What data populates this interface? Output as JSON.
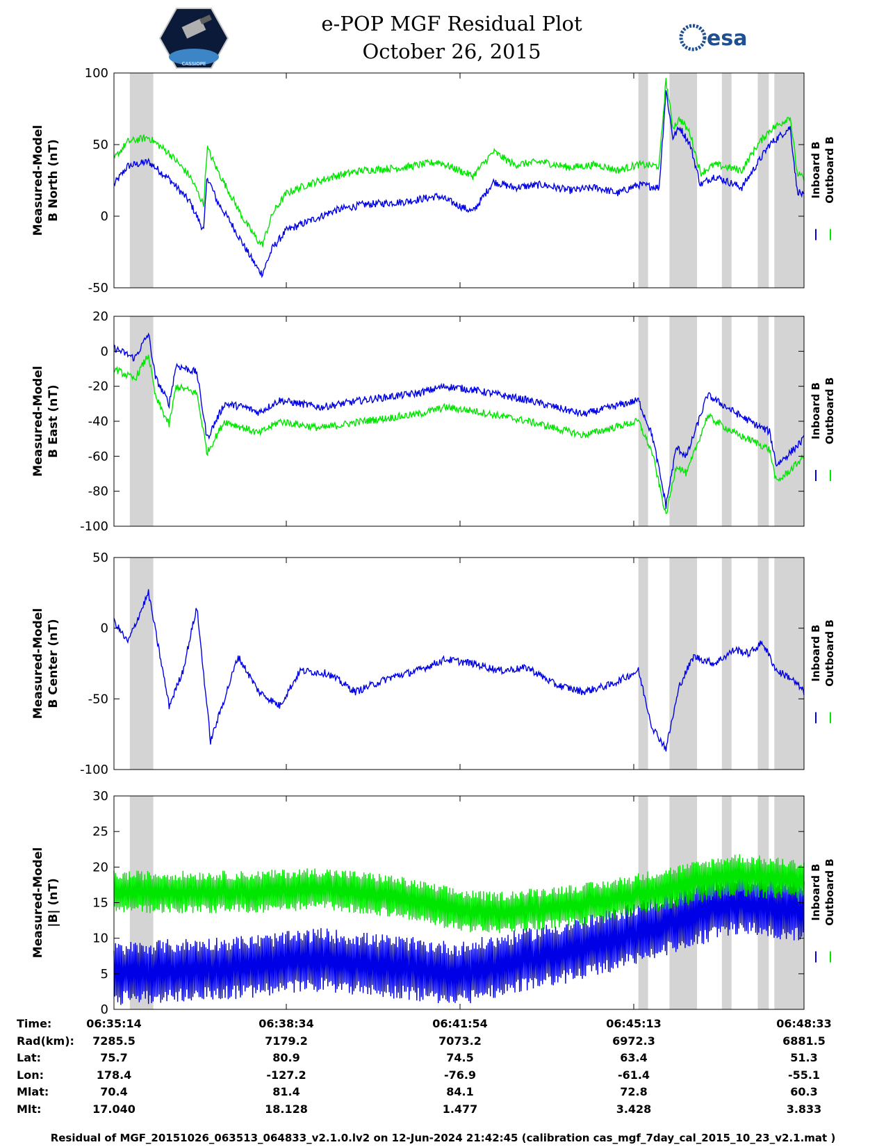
{
  "header": {
    "title": "e-POP MGF Residual Plot",
    "date": "October 26, 2015",
    "logo_left": "CASSIOPE",
    "logo_right": "esa"
  },
  "colors": {
    "inboard": "#0000e6",
    "outboard": "#00e600",
    "shade": "#d4d4d4"
  },
  "legend": {
    "inboard": "Inboard B",
    "outboard": "Outboard B"
  },
  "shaded_intervals_fraction": [
    [
      0.023,
      0.057
    ],
    [
      0.76,
      0.774
    ],
    [
      0.805,
      0.845
    ],
    [
      0.881,
      0.895
    ],
    [
      0.933,
      0.949
    ],
    [
      0.957,
      1.0
    ]
  ],
  "chart_data": [
    {
      "type": "line",
      "id": "north",
      "ylabel_line1": "Measured-Model",
      "ylabel_line2": "B North (nT)",
      "ylim": [
        -50,
        100
      ],
      "yticks": [
        100,
        50,
        0,
        -50
      ],
      "ytick_labels": [
        "100",
        "50",
        "0",
        "-50"
      ],
      "x": [
        0,
        0.02,
        0.05,
        0.08,
        0.11,
        0.13,
        0.135,
        0.15,
        0.17,
        0.19,
        0.21,
        0.215,
        0.23,
        0.25,
        0.28,
        0.32,
        0.36,
        0.42,
        0.47,
        0.52,
        0.55,
        0.58,
        0.62,
        0.66,
        0.7,
        0.73,
        0.76,
        0.79,
        0.8,
        0.81,
        0.82,
        0.835,
        0.85,
        0.87,
        0.89,
        0.91,
        0.93,
        0.95,
        0.97,
        0.98,
        0.99,
        1.0
      ],
      "series": [
        {
          "name": "Inboard B",
          "values": [
            22,
            35,
            38,
            26,
            10,
            -10,
            28,
            10,
            -5,
            -22,
            -38,
            -40,
            -22,
            -10,
            -4,
            4,
            8,
            10,
            14,
            3,
            24,
            20,
            22,
            18,
            20,
            16,
            22,
            20,
            88,
            55,
            62,
            50,
            22,
            28,
            24,
            20,
            35,
            50,
            58,
            62,
            18,
            14
          ]
        },
        {
          "name": "Outboard B",
          "values": [
            40,
            52,
            55,
            44,
            28,
            8,
            48,
            32,
            14,
            -4,
            -18,
            -20,
            2,
            16,
            22,
            28,
            32,
            34,
            38,
            28,
            45,
            36,
            38,
            34,
            36,
            32,
            36,
            35,
            95,
            62,
            68,
            58,
            30,
            36,
            34,
            32,
            48,
            60,
            66,
            70,
            30,
            26
          ]
        }
      ]
    },
    {
      "type": "line",
      "id": "east",
      "ylabel_line1": "Measured-Model",
      "ylabel_line2": "B East (nT)",
      "ylim": [
        -100,
        20
      ],
      "yticks": [
        20,
        0,
        -20,
        -40,
        -60,
        -80,
        -100
      ],
      "ytick_labels": [
        "20",
        "0",
        "-20",
        "-40",
        "-60",
        "-80",
        "-100"
      ],
      "x": [
        0,
        0.03,
        0.05,
        0.06,
        0.08,
        0.09,
        0.12,
        0.135,
        0.16,
        0.19,
        0.21,
        0.24,
        0.27,
        0.3,
        0.33,
        0.36,
        0.4,
        0.44,
        0.48,
        0.52,
        0.56,
        0.6,
        0.64,
        0.68,
        0.72,
        0.76,
        0.78,
        0.8,
        0.815,
        0.83,
        0.86,
        0.9,
        0.93,
        0.95,
        0.96,
        0.98,
        1.0
      ],
      "series": [
        {
          "name": "Inboard B",
          "values": [
            2,
            -4,
            10,
            -15,
            -30,
            -8,
            -12,
            -50,
            -30,
            -32,
            -35,
            -28,
            -30,
            -32,
            -30,
            -28,
            -26,
            -24,
            -20,
            -22,
            -25,
            -28,
            -32,
            -36,
            -32,
            -28,
            -48,
            -88,
            -55,
            -60,
            -25,
            -35,
            -42,
            -46,
            -65,
            -58,
            -50
          ]
        },
        {
          "name": "Outboard B",
          "values": [
            -10,
            -16,
            -2,
            -26,
            -42,
            -20,
            -24,
            -58,
            -40,
            -44,
            -47,
            -40,
            -42,
            -44,
            -42,
            -40,
            -38,
            -36,
            -32,
            -34,
            -37,
            -40,
            -44,
            -48,
            -44,
            -40,
            -58,
            -94,
            -65,
            -70,
            -37,
            -47,
            -52,
            -56,
            -75,
            -68,
            -60
          ]
        }
      ]
    },
    {
      "type": "line",
      "id": "center",
      "ylabel_line1": "Measured-Model",
      "ylabel_line2": "B Center (nT)",
      "ylim": [
        -100,
        50
      ],
      "yticks": [
        50,
        0,
        -50,
        -100
      ],
      "ytick_labels": [
        "50",
        "0",
        "-50",
        "-100"
      ],
      "x": [
        0,
        0.02,
        0.05,
        0.08,
        0.1,
        0.12,
        0.14,
        0.16,
        0.18,
        0.21,
        0.24,
        0.27,
        0.31,
        0.35,
        0.4,
        0.44,
        0.48,
        0.52,
        0.56,
        0.6,
        0.64,
        0.68,
        0.72,
        0.76,
        0.78,
        0.8,
        0.82,
        0.84,
        0.87,
        0.9,
        0.92,
        0.94,
        0.96,
        0.98,
        1.0
      ],
      "series": [
        {
          "name": "Inboard B",
          "values": [
            5,
            -10,
            25,
            -55,
            -30,
            15,
            -80,
            -50,
            -20,
            -45,
            -55,
            -30,
            -32,
            -45,
            -35,
            -30,
            -22,
            -25,
            -30,
            -28,
            -40,
            -45,
            -40,
            -30,
            -70,
            -85,
            -40,
            -20,
            -25,
            -15,
            -18,
            -10,
            -30,
            -35,
            -45
          ]
        }
      ]
    },
    {
      "type": "line",
      "id": "magnitude",
      "ylabel_line1": "Measured-Model",
      "ylabel_line2": "|B| (nT)",
      "ylim": [
        0,
        30
      ],
      "yticks": [
        30,
        25,
        20,
        15,
        10,
        5,
        0
      ],
      "ytick_labels": [
        "30",
        "25",
        "20",
        "15",
        "10",
        "5",
        "0"
      ],
      "x": [
        0,
        0.1,
        0.2,
        0.3,
        0.4,
        0.5,
        0.55,
        0.6,
        0.7,
        0.8,
        0.9,
        1.0
      ],
      "series": [
        {
          "name": "Inboard B",
          "center": [
            5,
            5.5,
            6,
            7,
            6,
            5,
            6,
            7,
            9,
            12,
            15,
            14
          ],
          "amplitude": [
            4.5,
            4.5,
            4.5,
            4.5,
            4.5,
            4.5,
            4.5,
            4.5,
            4.5,
            4.5,
            4.5,
            4.5
          ]
        },
        {
          "name": "Outboard B",
          "center": [
            16.5,
            16.5,
            16.5,
            17,
            16,
            14,
            13.5,
            14,
            15,
            17,
            19,
            18
          ],
          "amplitude": [
            3,
            3,
            3,
            3,
            3,
            3,
            3,
            3,
            3,
            3,
            3,
            3
          ]
        }
      ]
    }
  ],
  "info_table": {
    "rows": [
      {
        "label": "Time:",
        "values": [
          "06:35:14",
          "06:38:34",
          "06:41:54",
          "06:45:13",
          "06:48:33"
        ]
      },
      {
        "label": "Rad(km):",
        "values": [
          "7285.5",
          "7179.2",
          "7073.2",
          "6972.3",
          "6881.5"
        ]
      },
      {
        "label": "Lat:",
        "values": [
          "75.7",
          "80.9",
          "74.5",
          "63.4",
          "51.3"
        ]
      },
      {
        "label": "Lon:",
        "values": [
          "178.4",
          "-127.2",
          "-76.9",
          "-61.4",
          "-55.1"
        ]
      },
      {
        "label": "Mlat:",
        "values": [
          "70.4",
          "81.4",
          "84.1",
          "72.8",
          "60.3"
        ]
      },
      {
        "label": "Mlt:",
        "values": [
          "17.040",
          "18.128",
          "1.477",
          "3.428",
          "3.833"
        ]
      }
    ]
  },
  "footer": "Residual of MGF_20151026_063513_064833_v2.1.0.lv2 on 12-Jun-2024 21:42:45 (calibration cas_mgf_7day_cal_2015_10_23_v2.1.mat )"
}
